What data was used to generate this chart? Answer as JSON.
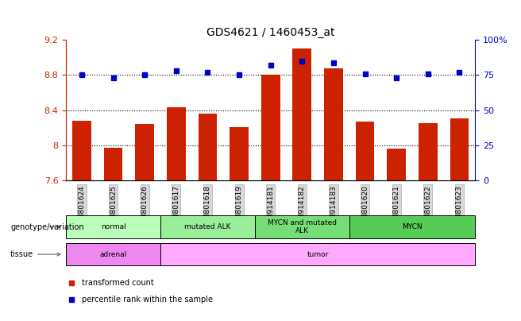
{
  "title": "GDS4621 / 1460453_at",
  "samples": [
    "GSM801624",
    "GSM801625",
    "GSM801626",
    "GSM801617",
    "GSM801618",
    "GSM801619",
    "GSM914181",
    "GSM914182",
    "GSM914183",
    "GSM801620",
    "GSM801621",
    "GSM801622",
    "GSM801623"
  ],
  "red_values": [
    8.28,
    7.97,
    8.24,
    8.43,
    8.36,
    8.21,
    8.8,
    9.1,
    8.88,
    8.27,
    7.96,
    8.25,
    8.31
  ],
  "blue_values": [
    75,
    73,
    75,
    78,
    77,
    75,
    82,
    85,
    84,
    76,
    73,
    76,
    77
  ],
  "ylim_left": [
    7.6,
    9.2
  ],
  "ylim_right": [
    0,
    100
  ],
  "yticks_left": [
    7.6,
    8.0,
    8.4,
    8.8,
    9.2
  ],
  "yticks_right": [
    0,
    25,
    50,
    75,
    100
  ],
  "ytick_labels_left": [
    "7.6",
    "8",
    "8.4",
    "8.8",
    "9.2"
  ],
  "ytick_labels_right": [
    "0",
    "25",
    "50",
    "75",
    "100%"
  ],
  "hlines": [
    8.0,
    8.4,
    8.8
  ],
  "bar_color": "#cc2200",
  "dot_color": "#0000cc",
  "genotype_groups": [
    {
      "label": "normal",
      "start": 0,
      "end": 3,
      "color": "#bbffbb"
    },
    {
      "label": "mutated ALK",
      "start": 3,
      "end": 6,
      "color": "#99ee99"
    },
    {
      "label": "MYCN and mutated\nALK",
      "start": 6,
      "end": 9,
      "color": "#77dd77"
    },
    {
      "label": "MYCN",
      "start": 9,
      "end": 13,
      "color": "#55cc55"
    }
  ],
  "tissue_groups": [
    {
      "label": "adrenal",
      "start": 0,
      "end": 3,
      "color": "#ee88ee"
    },
    {
      "label": "tumor",
      "start": 3,
      "end": 13,
      "color": "#ffaaff"
    }
  ],
  "legend_items": [
    {
      "color": "#cc2200",
      "label": "transformed count"
    },
    {
      "color": "#0000cc",
      "label": "percentile rank within the sample"
    }
  ],
  "tick_label_color_left": "#cc2200",
  "tick_label_color_right": "#0000cc"
}
